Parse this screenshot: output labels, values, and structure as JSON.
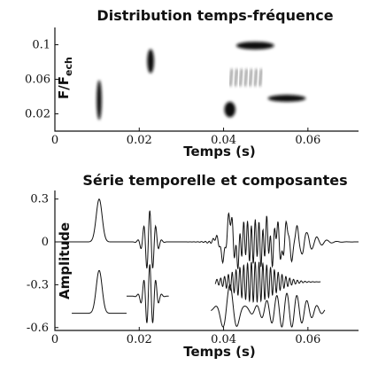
{
  "chart_data": [
    {
      "type": "heatmap",
      "title": "Distribution temps-fréquence",
      "xlabel": "Temps (s)",
      "ylabel_main": "F/F",
      "ylabel_sub": "ech",
      "xlim": [
        0,
        0.072
      ],
      "ylim": [
        0,
        0.12
      ],
      "xticks": [
        "0",
        "0.02",
        "0.04",
        "0.06"
      ],
      "xtick_values": [
        0,
        0.02,
        0.04,
        0.06
      ],
      "yticks": [
        "0.02",
        "0.06",
        "0.1"
      ],
      "ytick_values": [
        0.02,
        0.06,
        0.1
      ],
      "blobs": [
        {
          "t": 0.0105,
          "f": 0.036,
          "dt": 0.0006,
          "df": 0.023
        },
        {
          "t": 0.0227,
          "f": 0.081,
          "dt": 0.0008,
          "df": 0.014
        },
        {
          "t": 0.0415,
          "f": 0.025,
          "dt": 0.0013,
          "df": 0.009
        },
        {
          "t": 0.0475,
          "f": 0.099,
          "dt": 0.0045,
          "df": 0.0045
        },
        {
          "t": 0.055,
          "f": 0.038,
          "dt": 0.0045,
          "df": 0.004
        },
        {
          "t": 0.0455,
          "f": 0.062,
          "dt": 0.0035,
          "df": 0.01,
          "streaks": true
        }
      ]
    },
    {
      "type": "line",
      "title": "Série temporelle et composantes",
      "xlabel": "Temps (s)",
      "ylabel": "Amplitude",
      "xlim": [
        0,
        0.072
      ],
      "ylim": [
        -0.62,
        0.36
      ],
      "xticks": [
        "0",
        "0.02",
        "0.04",
        "0.06"
      ],
      "xtick_values": [
        0,
        0.02,
        0.04,
        0.06
      ],
      "yticks": [
        "0.3",
        "0",
        "-0.3",
        "-0.6"
      ],
      "ytick_values": [
        0.3,
        0,
        -0.3,
        -0.6
      ],
      "series": [
        {
          "role": "sum",
          "offset": 0,
          "x_range": [
            0.0,
            0.072
          ],
          "components": [
            {
              "kind": "spike",
              "t0": 0.0105,
              "amp": 0.3,
              "width": 0.0007
            },
            {
              "kind": "burst",
              "t0": 0.0225,
              "amp": 0.22,
              "freq": 700,
              "width": 0.0012
            },
            {
              "kind": "burst",
              "t0": 0.0415,
              "amp": 0.18,
              "freq": 280,
              "width": 0.0018
            },
            {
              "kind": "burst",
              "t0": 0.0475,
              "amp": 0.14,
              "freq": 1100,
              "width": 0.0045
            },
            {
              "kind": "burst",
              "t0": 0.055,
              "amp": 0.12,
              "freq": 420,
              "width": 0.0045
            }
          ]
        },
        {
          "role": "component",
          "offset": -0.5,
          "x_range": [
            0.004,
            0.017
          ],
          "components": [
            {
              "kind": "spike",
              "t0": 0.0105,
              "amp": 0.3,
              "width": 0.0007
            }
          ]
        },
        {
          "role": "component",
          "offset": -0.38,
          "x_range": [
            0.017,
            0.027
          ],
          "components": [
            {
              "kind": "burst",
              "t0": 0.0225,
              "amp": 0.22,
              "freq": 700,
              "width": 0.0012
            }
          ]
        },
        {
          "role": "component",
          "offset": -0.28,
          "x_range": [
            0.038,
            0.063
          ],
          "components": [
            {
              "kind": "burst",
              "t0": 0.0475,
              "amp": 0.14,
              "freq": 1100,
              "width": 0.0045
            }
          ]
        },
        {
          "role": "component",
          "offset": -0.48,
          "x_range": [
            0.037,
            0.064
          ],
          "components": [
            {
              "kind": "burst",
              "t0": 0.0415,
              "amp": 0.18,
              "freq": 280,
              "width": 0.0018
            },
            {
              "kind": "burst",
              "t0": 0.055,
              "amp": 0.12,
              "freq": 420,
              "width": 0.0045
            }
          ]
        }
      ]
    }
  ]
}
